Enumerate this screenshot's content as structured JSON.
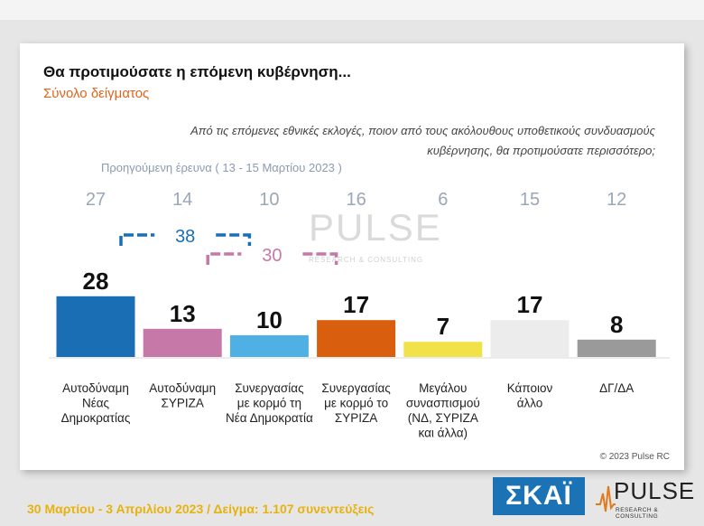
{
  "title": "Θα προτιμούσατε η επόμενη κυβέρνηση...",
  "subtitle": "Σύνολο δείγματος",
  "question": "Από τις επόμενες εθνικές εκλογές, ποιον από τους ακόλουθους υποθετικούς συνδυασμούς κυβέρνησης, θα προτιμούσατε περισσότερο;",
  "previous_label": "Προηγούμενη έρευνα  ( 13 - 15 Μαρτίου  2023 )",
  "footer_date": "30 Μαρτίου - 3  Απριλίου  2023  /  Δείγμα:  1.107 συνεντεύξεις",
  "copyright": "© 2023 Pulse RC",
  "logos": {
    "skai": "ΣΚΑΪ",
    "pulse": "PULSE",
    "pulse_tag": "RESEARCH & CONSULTING"
  },
  "watermark": {
    "word": "PULSE",
    "tag": "RESEARCH & CONSULTING"
  },
  "chart_data": {
    "type": "bar",
    "categories": [
      [
        "Αυτοδύναμη",
        "Νέας",
        "Δημοκρατίας"
      ],
      [
        "Αυτοδύναμη",
        "ΣΥΡΙΖΑ"
      ],
      [
        "Συνεργασίας",
        "με κορμό τη",
        "Νέα Δημοκρατία"
      ],
      [
        "Συνεργασίας",
        "με κορμό το",
        "ΣΥΡΙΖΑ"
      ],
      [
        "Μεγάλου",
        "συνασπισμού",
        "(ΝΔ, ΣΥΡΙΖΑ",
        "και άλλα)"
      ],
      [
        "Κάποιον",
        "άλλο"
      ],
      [
        "ΔΓ/ΔΑ"
      ]
    ],
    "values": [
      28,
      13,
      10,
      17,
      7,
      17,
      8
    ],
    "previous": [
      27,
      14,
      10,
      16,
      6,
      15,
      12
    ],
    "colors": [
      "#1a6fb4",
      "#c678a8",
      "#4fb1e3",
      "#d95f0e",
      "#f1e24a",
      "#ececec",
      "#9a9a9a"
    ],
    "brackets": [
      {
        "from": 0,
        "to": 2,
        "value": 38,
        "color": "#1a6fb4"
      },
      {
        "from": 1,
        "to": 3,
        "value": 30,
        "color": "#c678a8"
      }
    ]
  }
}
